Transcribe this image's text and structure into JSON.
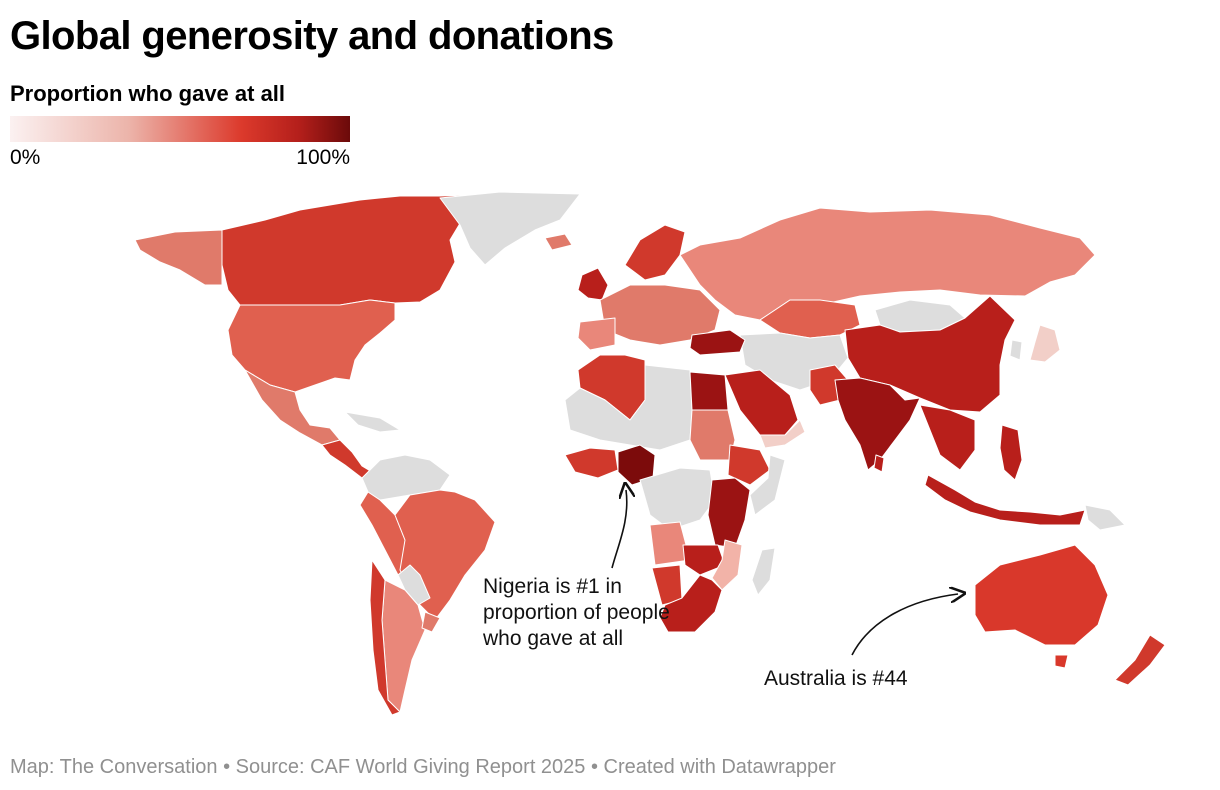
{
  "title": "Global generosity and donations",
  "legend": {
    "title": "Proportion who gave at all",
    "min_label": "0%",
    "max_label": "100%",
    "color_low": "#fbf1f1",
    "color_high": "#6b0a0a",
    "no_data_color": "#dddddd"
  },
  "annotations": {
    "nigeria": "Nigeria is #1 in proportion of people who gave at all",
    "australia": "Australia is #44"
  },
  "footer": "Map: The Conversation • Source: CAF World Giving Report 2025 • Created with Datawrapper"
}
